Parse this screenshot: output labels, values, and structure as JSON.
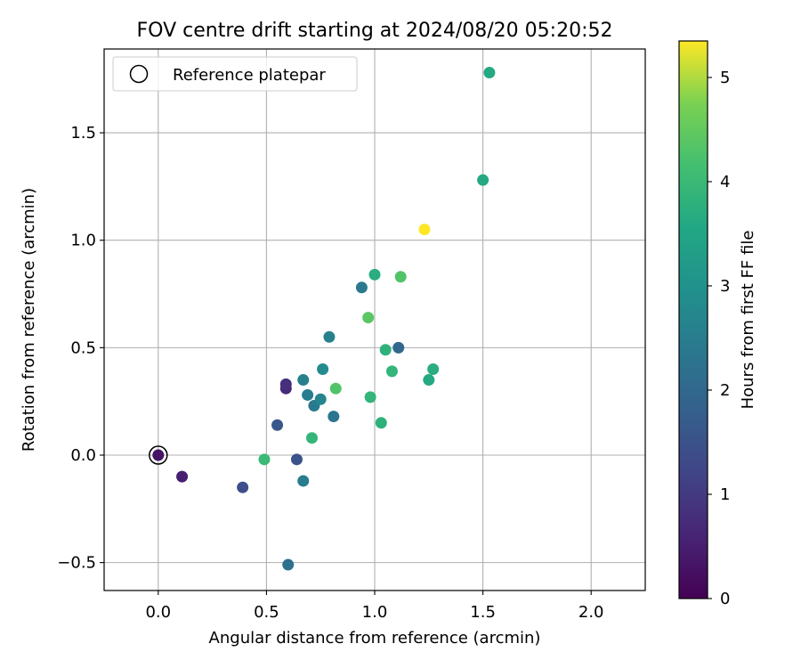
{
  "chart_data": {
    "type": "scatter",
    "title": "FOV centre drift starting at 2024/08/20 05:20:52",
    "xlabel": "Angular distance from reference (arcmin)",
    "ylabel": "Rotation from reference (arcmin)",
    "xlim": [
      -0.25,
      2.25
    ],
    "ylim": [
      -0.63,
      1.89
    ],
    "xticks": [
      0.0,
      0.5,
      1.0,
      1.5,
      2.0
    ],
    "xtick_labels": [
      "0.0",
      "0.5",
      "1.0",
      "1.5",
      "2.0"
    ],
    "yticks": [
      -0.5,
      0.0,
      0.5,
      1.0,
      1.5
    ],
    "ytick_labels": [
      "−0.5",
      "0.0",
      "0.5",
      "1.0",
      "1.5"
    ],
    "grid": true,
    "legend": {
      "placement": "upper-left",
      "entries": [
        "Reference platepar"
      ]
    },
    "colorbar": {
      "label": "Hours from first FF file",
      "colormap": "viridis",
      "range": [
        0,
        5.35
      ],
      "ticks": [
        0,
        1,
        2,
        3,
        4,
        5
      ],
      "tick_labels": [
        "0",
        "1",
        "2",
        "3",
        "4",
        "5"
      ]
    },
    "reference_point": {
      "x": 0.0,
      "y": 0.0,
      "marker": "open-circle"
    },
    "points": [
      {
        "x": 0.0,
        "y": 0.0,
        "hours": 0.3
      },
      {
        "x": 0.11,
        "y": -0.1,
        "hours": 0.5
      },
      {
        "x": 0.39,
        "y": -0.15,
        "hours": 1.4
      },
      {
        "x": 0.49,
        "y": -0.02,
        "hours": 4.0
      },
      {
        "x": 0.55,
        "y": 0.14,
        "hours": 1.6
      },
      {
        "x": 0.59,
        "y": 0.31,
        "hours": 0.7
      },
      {
        "x": 0.59,
        "y": 0.33,
        "hours": 0.8
      },
      {
        "x": 0.6,
        "y": -0.51,
        "hours": 2.2
      },
      {
        "x": 0.64,
        "y": -0.02,
        "hours": 1.5
      },
      {
        "x": 0.67,
        "y": 0.35,
        "hours": 2.6
      },
      {
        "x": 0.67,
        "y": -0.12,
        "hours": 2.5
      },
      {
        "x": 0.69,
        "y": 0.28,
        "hours": 2.5
      },
      {
        "x": 0.71,
        "y": 0.08,
        "hours": 3.9
      },
      {
        "x": 0.72,
        "y": 0.23,
        "hours": 2.4
      },
      {
        "x": 0.75,
        "y": 0.26,
        "hours": 2.7
      },
      {
        "x": 0.76,
        "y": 0.4,
        "hours": 2.8
      },
      {
        "x": 0.79,
        "y": 0.55,
        "hours": 2.6
      },
      {
        "x": 0.81,
        "y": 0.18,
        "hours": 2.3
      },
      {
        "x": 0.82,
        "y": 0.31,
        "hours": 4.3
      },
      {
        "x": 0.94,
        "y": 0.78,
        "hours": 2.4
      },
      {
        "x": 0.97,
        "y": 0.64,
        "hours": 4.4
      },
      {
        "x": 0.98,
        "y": 0.27,
        "hours": 3.9
      },
      {
        "x": 1.0,
        "y": 0.84,
        "hours": 3.7
      },
      {
        "x": 1.03,
        "y": 0.15,
        "hours": 3.8
      },
      {
        "x": 1.05,
        "y": 0.49,
        "hours": 3.8
      },
      {
        "x": 1.08,
        "y": 0.39,
        "hours": 3.9
      },
      {
        "x": 1.11,
        "y": 0.5,
        "hours": 2.0
      },
      {
        "x": 1.12,
        "y": 0.83,
        "hours": 4.3
      },
      {
        "x": 1.23,
        "y": 1.05,
        "hours": 5.35
      },
      {
        "x": 1.25,
        "y": 0.35,
        "hours": 3.6
      },
      {
        "x": 1.27,
        "y": 0.4,
        "hours": 3.7
      },
      {
        "x": 1.5,
        "y": 1.28,
        "hours": 3.6
      },
      {
        "x": 1.53,
        "y": 1.78,
        "hours": 3.6
      }
    ]
  }
}
